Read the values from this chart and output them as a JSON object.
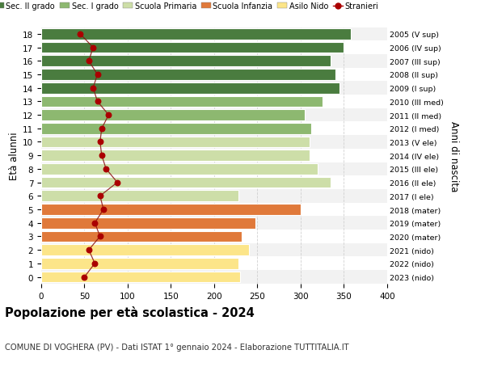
{
  "ages": [
    0,
    1,
    2,
    3,
    4,
    5,
    6,
    7,
    8,
    9,
    10,
    11,
    12,
    13,
    14,
    15,
    16,
    17,
    18
  ],
  "labels_right": [
    "2023 (nido)",
    "2022 (nido)",
    "2021 (nido)",
    "2020 (mater)",
    "2019 (mater)",
    "2018 (mater)",
    "2017 (I ele)",
    "2016 (II ele)",
    "2015 (III ele)",
    "2014 (IV ele)",
    "2013 (V ele)",
    "2012 (I med)",
    "2011 (II med)",
    "2010 (III med)",
    "2009 (I sup)",
    "2008 (II sup)",
    "2007 (III sup)",
    "2006 (IV sup)",
    "2005 (V sup)"
  ],
  "bar_values": [
    230,
    228,
    240,
    232,
    248,
    300,
    228,
    335,
    320,
    310,
    310,
    312,
    305,
    325,
    345,
    340,
    335,
    350,
    358
  ],
  "bar_colors": [
    "#fce589",
    "#fce589",
    "#fce589",
    "#e0793a",
    "#e0793a",
    "#e0793a",
    "#cddea8",
    "#cddea8",
    "#cddea8",
    "#cddea8",
    "#cddea8",
    "#8db870",
    "#8db870",
    "#8db870",
    "#4a7c3f",
    "#4a7c3f",
    "#4a7c3f",
    "#4a7c3f",
    "#4a7c3f"
  ],
  "stranieri_values": [
    50,
    62,
    55,
    68,
    62,
    72,
    68,
    88,
    75,
    70,
    68,
    70,
    78,
    65,
    60,
    65,
    55,
    60,
    45
  ],
  "legend_labels": [
    "Sec. II grado",
    "Sec. I grado",
    "Scuola Primaria",
    "Scuola Infanzia",
    "Asilo Nido",
    "Stranieri"
  ],
  "legend_colors": [
    "#4a7c3f",
    "#8db870",
    "#cddea8",
    "#e0793a",
    "#fce589",
    "#aa0000"
  ],
  "ylabel": "Età alunni",
  "ylabel_right": "Anni di nascita",
  "title": "Popolazione per età scolastica - 2024",
  "subtitle": "COMUNE DI VOGHERA (PV) - Dati ISTAT 1° gennaio 2024 - Elaborazione TUTTITALIA.IT",
  "xlim": [
    0,
    400
  ],
  "xticks": [
    0,
    50,
    100,
    150,
    200,
    250,
    300,
    350,
    400
  ],
  "plot_bg": "#ffffff",
  "fig_bg": "#ffffff",
  "grid_color": "#cccccc",
  "bar_height": 0.82
}
